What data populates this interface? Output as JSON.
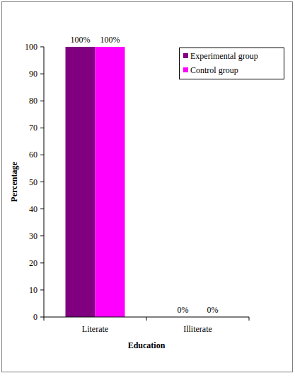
{
  "chart_data": {
    "type": "bar",
    "x_label": "Education",
    "y_label": "Percentage",
    "categories": [
      "Literate",
      "Illiterate"
    ],
    "series": [
      {
        "name": "Experimental group",
        "color": "#800080",
        "values": [
          100,
          0
        ],
        "value_labels": [
          "100%",
          "0%"
        ]
      },
      {
        "name": "Control group",
        "color": "#ff00ff",
        "values": [
          100,
          0
        ],
        "value_labels": [
          "100%",
          "0%"
        ]
      }
    ],
    "ylim": [
      0,
      100
    ],
    "yticks": [
      0,
      10,
      20,
      30,
      40,
      50,
      60,
      70,
      80,
      90,
      100
    ],
    "grid": false,
    "legend": "upper right",
    "data_labels": true
  }
}
